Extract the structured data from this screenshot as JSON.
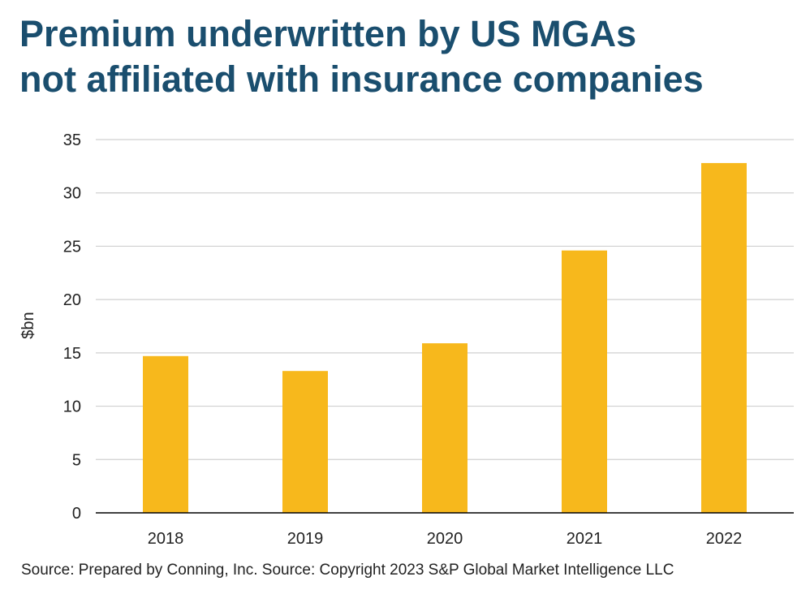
{
  "title_lines": [
    "Premium underwritten by US MGAs",
    "not affiliated with insurance companies"
  ],
  "source": "Source: Prepared by Conning, Inc. Source: Copyright 2023 S&P Global Market Intelligence LLC",
  "colors": {
    "bar": "#f7b81c",
    "title": "#1a4e6e",
    "grid": "#d0d0d0",
    "axis": "#000000"
  },
  "chart_data": {
    "type": "bar",
    "title": "Premium underwritten by US MGAs not affiliated with insurance companies",
    "xlabel": "",
    "ylabel": "$bn",
    "categories": [
      "2018",
      "2019",
      "2020",
      "2021",
      "2022"
    ],
    "values": [
      14.7,
      13.3,
      15.9,
      24.6,
      32.8
    ],
    "ylim": [
      0,
      35
    ],
    "yticks": [
      0,
      5,
      10,
      15,
      20,
      25,
      30,
      35
    ],
    "grid": true,
    "legend": "none"
  }
}
